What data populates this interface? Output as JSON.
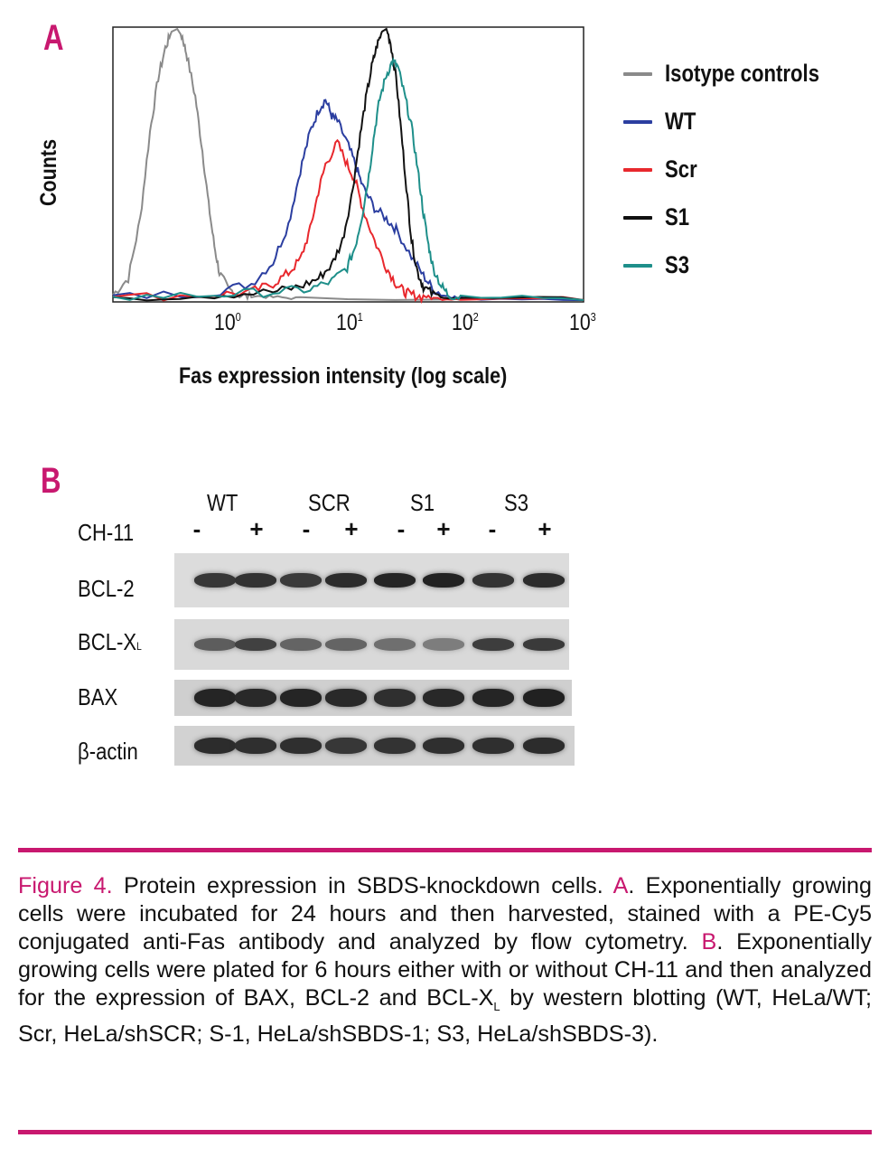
{
  "panel_a": {
    "letter": "A",
    "chart_data": {
      "type": "line",
      "title": "",
      "xlabel": "Fas expression intensity (log scale)",
      "ylabel": "Counts",
      "xscale": "log",
      "xlim": [
        0.15,
        1000
      ],
      "ylim": [
        0,
        1
      ],
      "x_ticks": [
        {
          "base": "10",
          "exp": "0",
          "value": 1
        },
        {
          "base": "10",
          "exp": "1",
          "value": 10
        },
        {
          "base": "10",
          "exp": "2",
          "value": 100
        },
        {
          "base": "10",
          "exp": "3",
          "value": 1000
        }
      ],
      "legend_position": "right",
      "series": [
        {
          "name": "Isotype controls",
          "color": "#8a8a8a",
          "x": [
            0.15,
            0.2,
            0.25,
            0.3,
            0.35,
            0.4,
            0.45,
            0.5,
            0.55,
            0.6,
            0.7,
            0.8,
            0.9,
            1.0,
            1.1,
            1.3,
            1.6,
            2.0,
            3.0,
            5.0,
            1000
          ],
          "y": [
            0.02,
            0.08,
            0.3,
            0.62,
            0.82,
            0.93,
            0.99,
            1.0,
            0.97,
            0.9,
            0.75,
            0.55,
            0.35,
            0.2,
            0.1,
            0.04,
            0.02,
            0.01,
            0.005,
            0.0,
            0.0
          ]
        },
        {
          "name": "WT",
          "color": "#2b3ea0",
          "x": [
            0.15,
            1,
            2,
            3,
            4,
            5,
            6,
            7,
            8,
            9,
            10,
            12,
            14,
            16,
            20,
            25,
            30,
            40,
            50,
            60,
            80,
            100,
            1000
          ],
          "y": [
            0.01,
            0.03,
            0.06,
            0.14,
            0.28,
            0.48,
            0.62,
            0.7,
            0.74,
            0.68,
            0.66,
            0.58,
            0.5,
            0.42,
            0.34,
            0.3,
            0.26,
            0.16,
            0.09,
            0.04,
            0.01,
            0.0,
            0.0
          ]
        },
        {
          "name": "Scr",
          "color": "#e8282d",
          "x": [
            0.15,
            1,
            2,
            3,
            4,
            5,
            6,
            7,
            8,
            10,
            12,
            14,
            16,
            20,
            25,
            30,
            35,
            40,
            50,
            60,
            100,
            1000
          ],
          "y": [
            0.01,
            0.02,
            0.03,
            0.06,
            0.1,
            0.15,
            0.26,
            0.4,
            0.5,
            0.58,
            0.5,
            0.44,
            0.34,
            0.22,
            0.12,
            0.06,
            0.03,
            0.02,
            0.01,
            0.0,
            0.0,
            0.0
          ]
        },
        {
          "name": "S1",
          "color": "#111111",
          "x": [
            0.15,
            1,
            3,
            5,
            7,
            9,
            11,
            13,
            15,
            17,
            19,
            21,
            23,
            25,
            27,
            30,
            33,
            37,
            40,
            45,
            50,
            60,
            80,
            1000
          ],
          "y": [
            0.01,
            0.02,
            0.03,
            0.05,
            0.08,
            0.13,
            0.22,
            0.38,
            0.58,
            0.74,
            0.86,
            0.94,
            0.99,
            1.0,
            0.95,
            0.82,
            0.62,
            0.38,
            0.22,
            0.1,
            0.05,
            0.02,
            0.0,
            0.0
          ]
        },
        {
          "name": "S3",
          "color": "#1e8f8a",
          "x": [
            0.15,
            1,
            3,
            6,
            9,
            12,
            14,
            16,
            18,
            20,
            22,
            25,
            28,
            31,
            35,
            40,
            45,
            50,
            55,
            60,
            70,
            80,
            100,
            1000
          ],
          "y": [
            0.01,
            0.02,
            0.03,
            0.04,
            0.07,
            0.12,
            0.2,
            0.32,
            0.46,
            0.62,
            0.74,
            0.83,
            0.88,
            0.86,
            0.76,
            0.64,
            0.48,
            0.32,
            0.2,
            0.12,
            0.05,
            0.02,
            0.01,
            0.0
          ]
        }
      ]
    }
  },
  "panel_b": {
    "letter": "B",
    "group_labels": [
      "WT",
      "SCR",
      "S1",
      "S3"
    ],
    "treatment_label": "CH-11",
    "treatment_signs": [
      "-",
      "+",
      "-",
      "+",
      "-",
      "+",
      "-",
      "+"
    ],
    "rows": [
      {
        "label": "BCL-2",
        "intensity": [
          0.82,
          0.86,
          0.8,
          0.9,
          0.95,
          0.97,
          0.85,
          0.9
        ]
      },
      {
        "label_main": "BCL-X",
        "label_sub": "L",
        "intensity": [
          0.55,
          0.75,
          0.5,
          0.5,
          0.42,
          0.32,
          0.78,
          0.8
        ]
      },
      {
        "label": "BAX",
        "intensity": [
          0.95,
          0.92,
          0.95,
          0.92,
          0.88,
          0.93,
          0.95,
          0.98
        ]
      },
      {
        "label": "β-actin",
        "intensity": [
          0.9,
          0.88,
          0.88,
          0.82,
          0.85,
          0.88,
          0.88,
          0.9
        ]
      }
    ]
  },
  "caption": {
    "figure_label": "Figure 4.",
    "title": " Protein expression in SBDS-knockdown cells. ",
    "ref_a": "A",
    "text_a": ". Exponentially growing cells were incubated for 24 hours and then harvested, stained with a PE-Cy5 conjugated anti-Fas antibody and analyzed by flow cytometry. ",
    "ref_b": "B",
    "text_b_1": ". Exponentially growing cells were plated for 6 hours either with or without CH-11 and then analyzed for the expression of BAX, BCL-2 and BCL-X",
    "text_b_sub": "L",
    "text_b_2": " by western blotting (WT, HeLa/WT; Scr, HeLa/shSCR; S-1, HeLa/shSBDS-1; S3, HeLa/shSBDS-3)."
  },
  "colors": {
    "accent": "#c8186f"
  }
}
